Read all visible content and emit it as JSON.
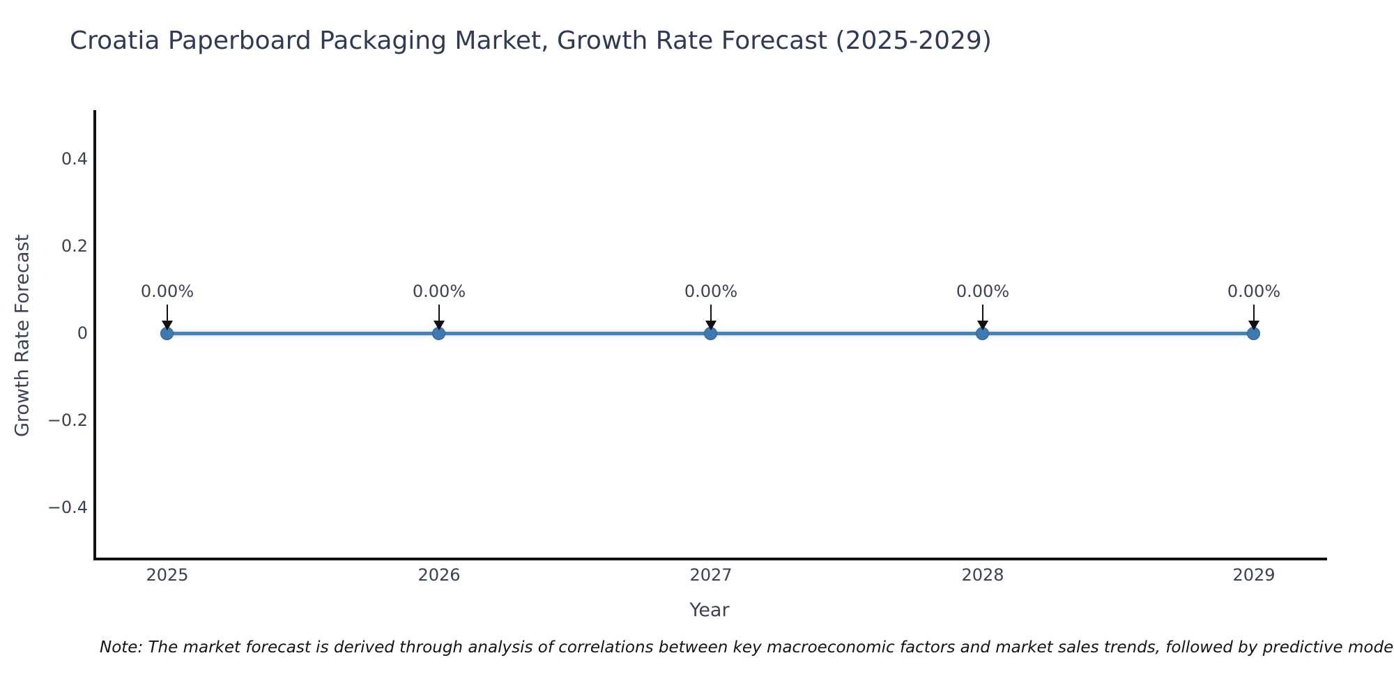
{
  "chart_data": {
    "type": "line",
    "title": "Croatia Paperboard Packaging Market, Growth Rate Forecast (2025-2029)",
    "xlabel": "Year",
    "ylabel": "Growth Rate Forecast",
    "categories": [
      "2025",
      "2026",
      "2027",
      "2028",
      "2029"
    ],
    "values": [
      0,
      0,
      0,
      0,
      0
    ],
    "point_labels": [
      "0.00%",
      "0.00%",
      "0.00%",
      "0.00%",
      "0.00%"
    ],
    "yticks": [
      "0.4",
      "0.2",
      "0",
      "−0.2",
      "−0.4"
    ],
    "ylim": [
      -0.5,
      0.5
    ],
    "grid": false,
    "legend": false,
    "annotations_style": "down-arrow-to-point",
    "line_color": "#4682b4",
    "marker_color": "#3e7ab1",
    "arrow_color": "#111111",
    "title_color": "#2e3a58",
    "tick_color": "#3b4254"
  },
  "footnote": {
    "text": "Note: The market forecast is derived through analysis of correlations between key macroeconomic factors and market sales trends, followed by predictive modeling to project future sa"
  }
}
